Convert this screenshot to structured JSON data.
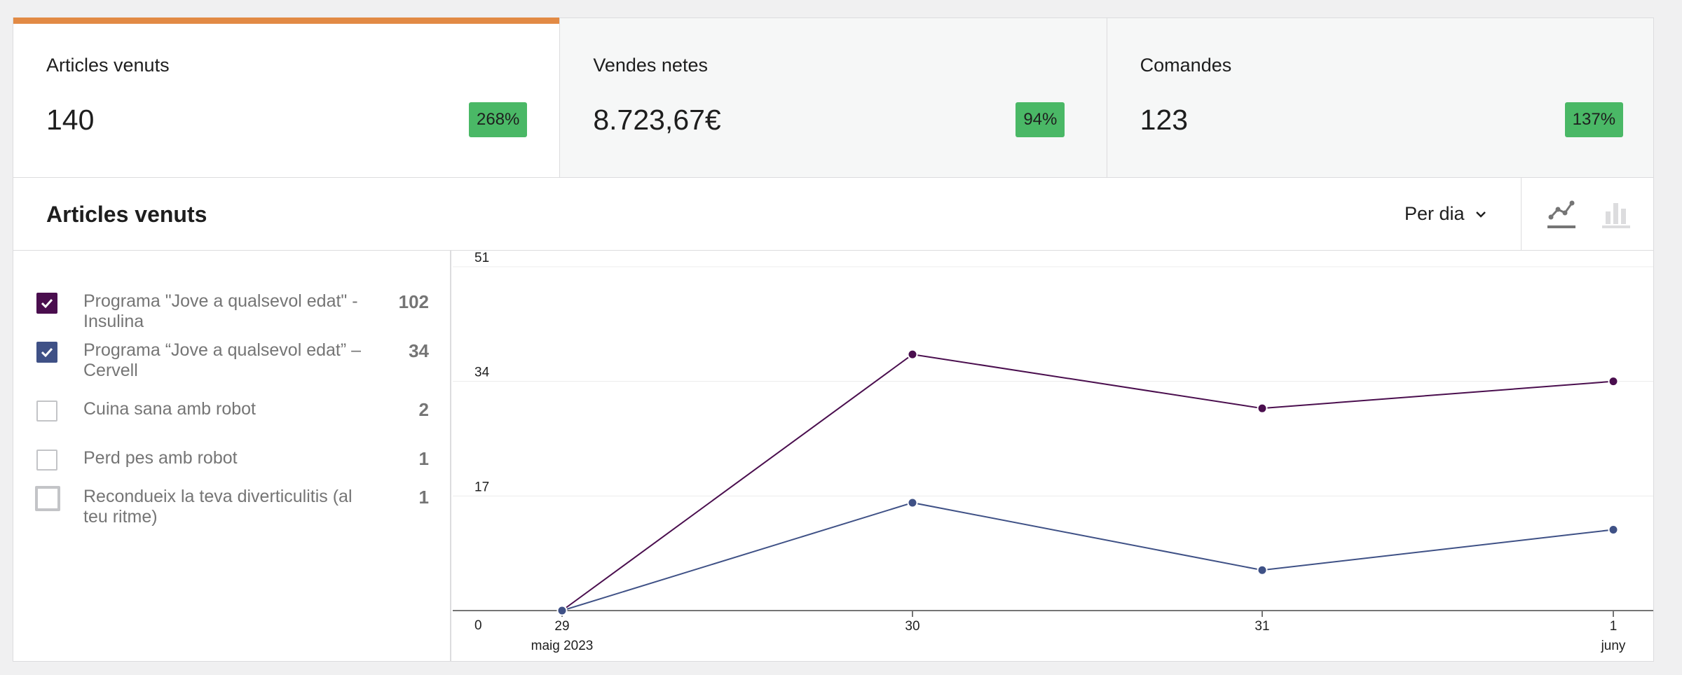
{
  "cards": [
    {
      "label": "Articles venuts",
      "value": "140",
      "delta": "268%",
      "selected": true
    },
    {
      "label": "Vendes netes",
      "value": "8.723,67€",
      "delta": "94%",
      "selected": false
    },
    {
      "label": "Comandes",
      "value": "123",
      "delta": "137%",
      "selected": false
    }
  ],
  "header": {
    "title": "Articles venuts",
    "interval_label": "Per dia",
    "chart_type_options": [
      "line-chart-icon",
      "bar-chart-icon"
    ],
    "active_chart_type": "line-chart-icon"
  },
  "legend": [
    {
      "label": "Programa \"Jove a qualsevol edat\" - Insulina",
      "total": "102",
      "checked": true,
      "color": "#4a0e4e"
    },
    {
      "label": "Programa “Jove a qualsevol edat” – Cervell",
      "total": "34",
      "checked": true,
      "color": "#3f5186"
    },
    {
      "label": "Cuina sana amb robot",
      "total": "2",
      "checked": false,
      "color": "#c3c4c7"
    },
    {
      "label": "Perd pes amb robot",
      "total": "1",
      "checked": false,
      "color": "#c3c4c7"
    },
    {
      "label": "Recondueix la teva diverticulitis (al teu ritme)",
      "total": "1",
      "checked": false,
      "focused": true,
      "color": "#c3c4c7"
    }
  ],
  "chart_data": {
    "type": "line",
    "x": [
      "29",
      "30",
      "31",
      "1"
    ],
    "x_sublabels": [
      "maig 2023",
      "",
      "",
      "juny"
    ],
    "yticks": [
      0,
      17,
      34,
      51
    ],
    "ylim": [
      0,
      51
    ],
    "grid": true,
    "series": [
      {
        "name": "Programa \"Jove a qualsevol edat\" - Insulina",
        "color": "#4a0e4e",
        "values": [
          0,
          38,
          30,
          34
        ]
      },
      {
        "name": "Programa “Jove a qualsevol edat” – Cervell",
        "color": "#3f5186",
        "values": [
          0,
          16,
          6,
          12
        ]
      }
    ]
  }
}
